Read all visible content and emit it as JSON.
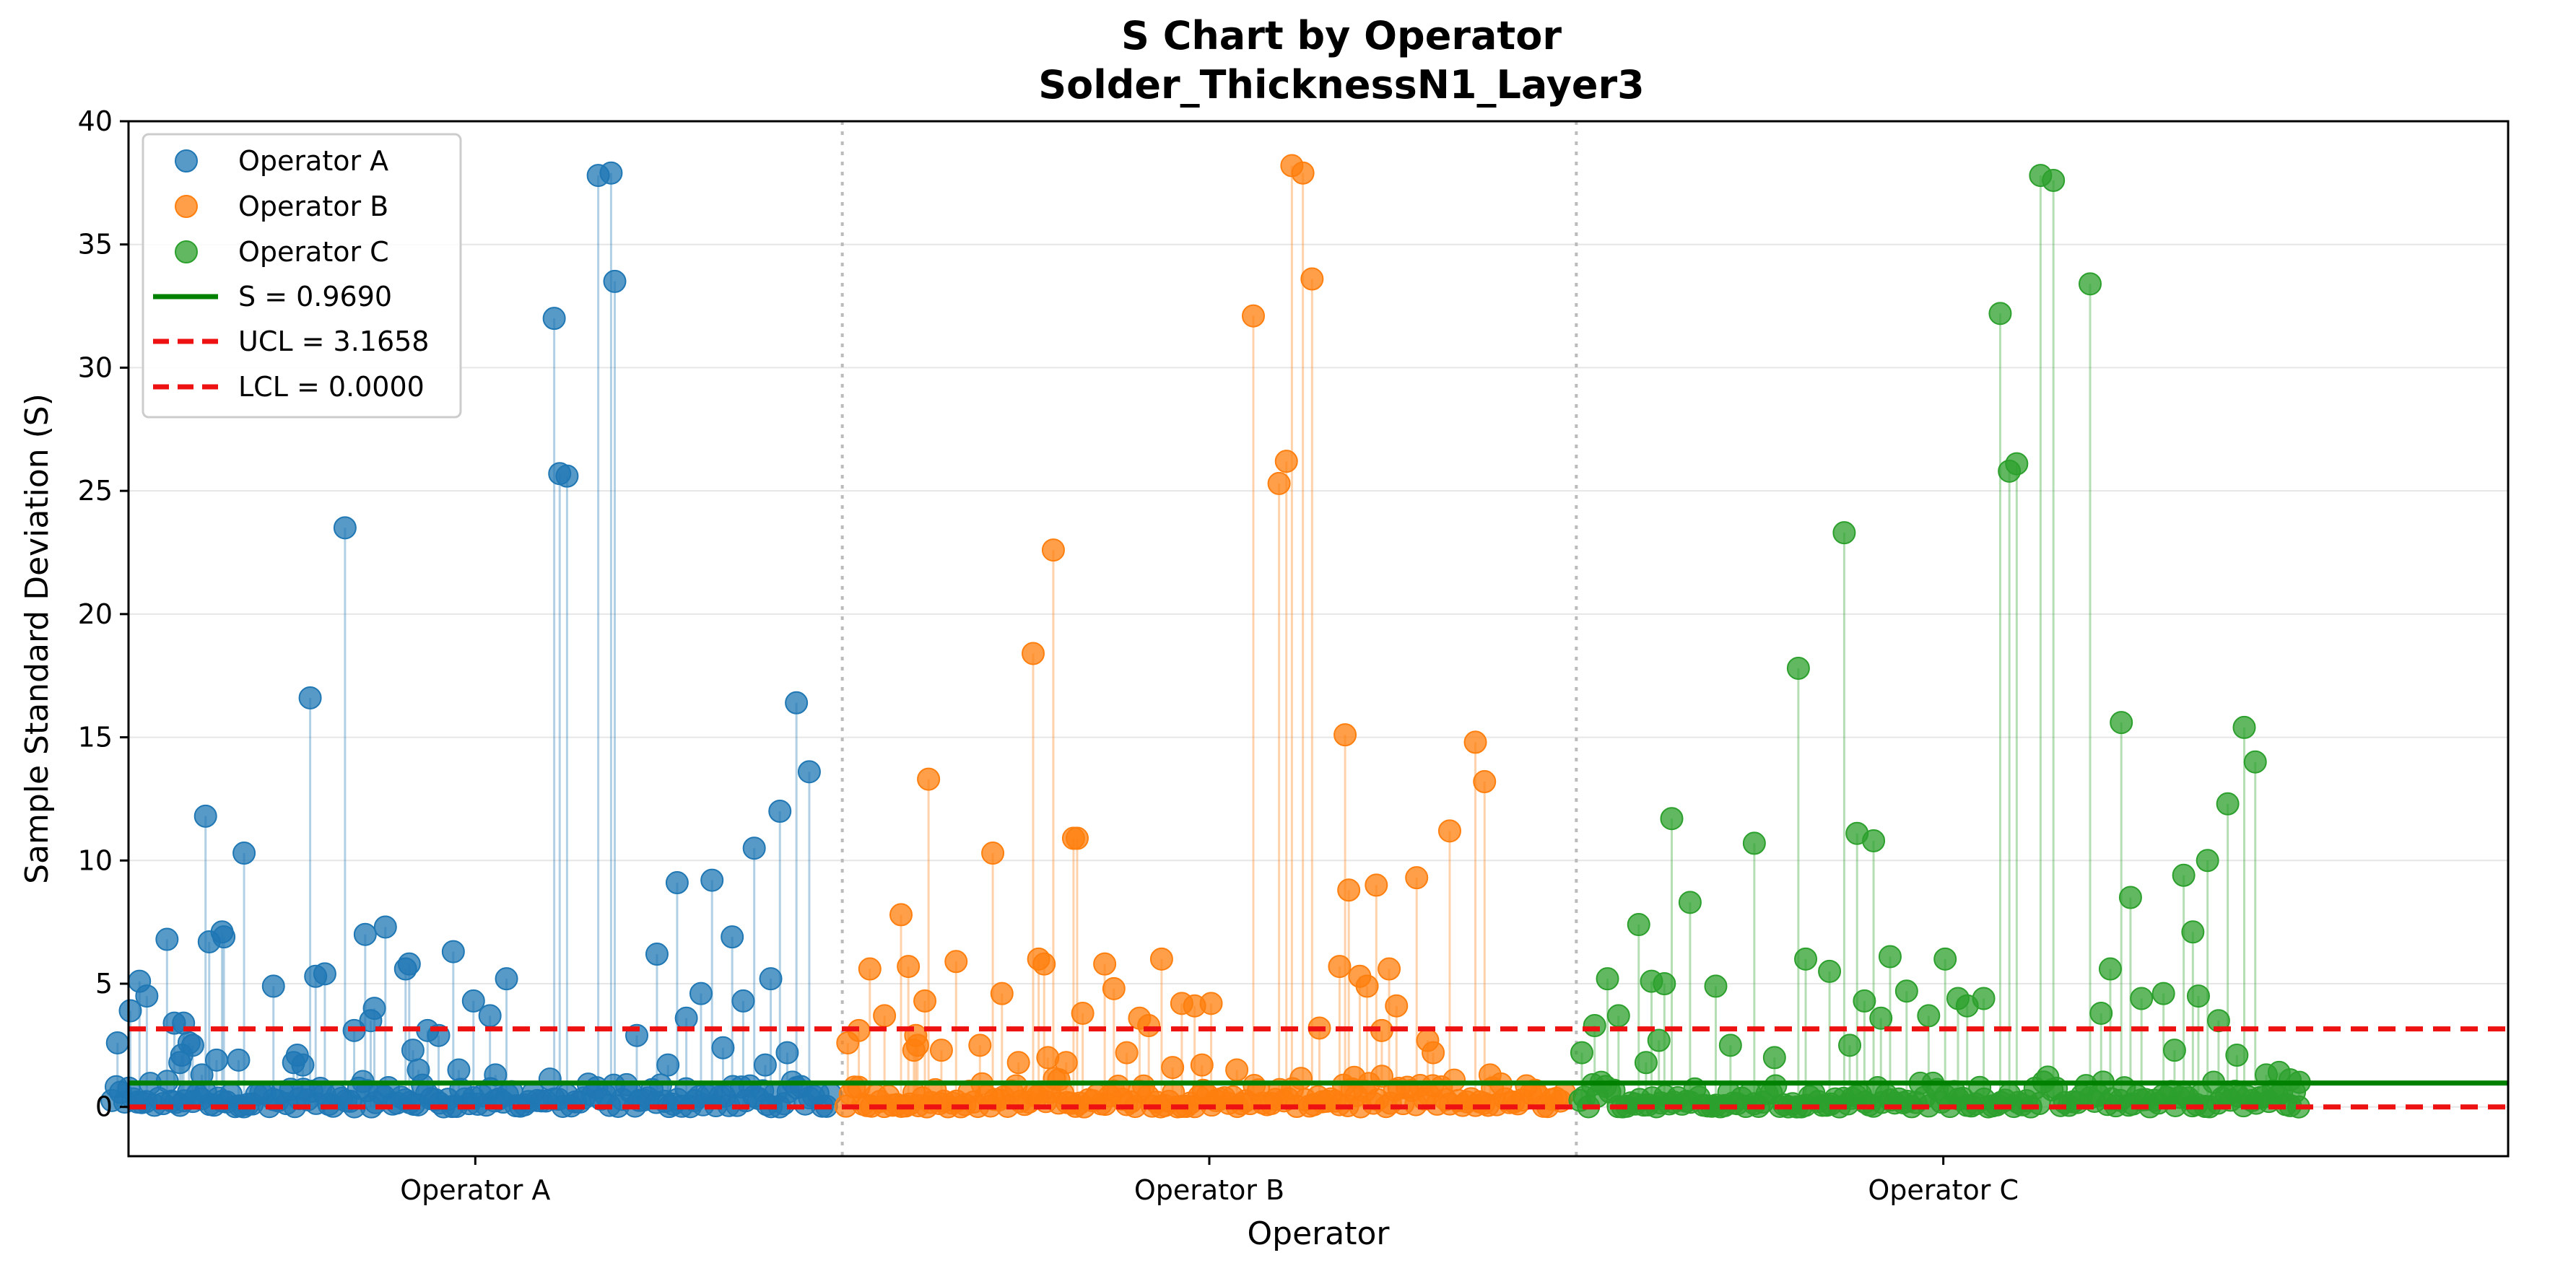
{
  "chart_data": {
    "type": "scatter",
    "title": "S Chart by Operator",
    "subtitle": "Solder_ThicknessN1_Layer3",
    "xlabel": "Operator",
    "ylabel": "Sample Standard Deviation (S)",
    "ylim": [
      -2,
      40
    ],
    "yticks": [
      0,
      5,
      10,
      15,
      20,
      25,
      30,
      35,
      40
    ],
    "categories": [
      "Operator A",
      "Operator B",
      "Operator C"
    ],
    "grid": "horizontal",
    "legend_position": "top-left",
    "colors": {
      "Operator A": "#1f77b4",
      "Operator B": "#ff7f0e",
      "Operator C": "#2ca02c",
      "center_line": "#008000",
      "limit_lines": "#ee1111",
      "separator": "#bbbbbb"
    },
    "center_line": {
      "label": "S = 0.9690",
      "value": 0.969
    },
    "ucl": {
      "label": "UCL = 3.1658",
      "value": 3.1658
    },
    "lcl": {
      "label": "LCL = 0.0000",
      "value": 0.0
    },
    "series": [
      {
        "name": "Operator A",
        "x": [
          0.5,
          1.2,
          1.7,
          2.1,
          3.2,
          3.6,
          3.9,
          4.0,
          4.1,
          4.4,
          4.6,
          5.1,
          5.3,
          5.5,
          5.9,
          6.2,
          6.3,
          7.1,
          7.4,
          9.0,
          10.1,
          10.3,
          10.6,
          11.0,
          11.3,
          11.8,
          12.9,
          13.4,
          14.0,
          14.3,
          14.5,
          15.1,
          16.2,
          16.4,
          16.6,
          16.9,
          17.4,
          18.0,
          18.8,
          19.1,
          19.9,
          20.8,
          21.1,
          21.7,
          24.3,
          24.6,
          25.0,
          26.7,
          27.4,
          27.6,
          28.8,
          29.9,
          30.5,
          31.0,
          31.5,
          32.3,
          32.9,
          33.5,
          34.0,
          34.6,
          35.2,
          35.8,
          36.1,
          36.6,
          37.0,
          37.5,
          38.2
        ],
        "y": [
          2.6,
          3.9,
          5.1,
          4.5,
          6.8,
          3.4,
          1.8,
          2.1,
          3.4,
          2.6,
          2.5,
          1.3,
          11.8,
          6.7,
          1.9,
          7.1,
          6.9,
          1.9,
          10.3,
          4.9,
          1.8,
          2.1,
          1.7,
          16.6,
          5.3,
          5.4,
          23.5,
          3.1,
          7.0,
          3.5,
          4.0,
          7.3,
          5.6,
          5.8,
          2.3,
          1.5,
          3.1,
          2.9,
          6.3,
          1.5,
          4.3,
          3.7,
          1.3,
          5.2,
          32.0,
          25.7,
          25.6,
          37.8,
          37.9,
          33.5,
          2.9,
          6.2,
          1.7,
          9.1,
          3.6,
          4.6,
          9.2,
          2.4,
          6.9,
          4.3,
          10.5,
          1.7,
          5.2,
          12.0,
          2.2,
          16.4,
          13.6
        ]
      },
      {
        "name": "Operator B",
        "x": [
          40.3,
          40.9,
          41.5,
          42.3,
          43.2,
          43.6,
          43.9,
          44.0,
          44.1,
          44.5,
          44.7,
          45.4,
          46.2,
          47.5,
          48.2,
          48.7,
          49.6,
          50.4,
          50.7,
          51.0,
          51.2,
          51.5,
          51.8,
          52.2,
          52.6,
          52.8,
          53.1,
          54.3,
          54.8,
          55.5,
          56.2,
          56.7,
          57.4,
          58.0,
          58.5,
          59.2,
          59.6,
          60.1,
          61.5,
          62.4,
          63.8,
          64.2,
          64.5,
          65.1,
          65.6,
          66.0,
          67.1,
          67.4,
          67.6,
          67.9,
          68.2,
          68.6,
          69.1,
          69.4,
          69.8,
          70.2,
          71.3,
          71.9,
          72.2,
          73.1,
          74.5,
          75.0,
          75.3
        ],
        "y": [
          2.6,
          3.1,
          5.6,
          3.7,
          7.8,
          5.7,
          2.3,
          2.9,
          2.5,
          4.3,
          13.3,
          2.3,
          5.9,
          2.5,
          10.3,
          4.6,
          1.8,
          18.4,
          6.0,
          5.8,
          2.0,
          22.6,
          1.1,
          1.8,
          10.9,
          10.9,
          3.8,
          5.8,
          4.8,
          2.2,
          3.6,
          3.3,
          6.0,
          1.6,
          4.2,
          4.1,
          1.7,
          4.2,
          1.5,
          32.1,
          25.3,
          26.2,
          38.2,
          37.9,
          33.6,
          3.2,
          5.7,
          15.1,
          8.8,
          1.2,
          5.3,
          4.9,
          9.0,
          3.1,
          5.6,
          4.1,
          9.3,
          2.7,
          2.2,
          11.2,
          14.8,
          13.2,
          1.3
        ]
      },
      {
        "name": "Operator C",
        "x": [
          80.3,
          81.0,
          81.7,
          82.3,
          83.4,
          83.8,
          84.1,
          84.5,
          84.8,
          85.2,
          86.2,
          87.6,
          88.4,
          89.7,
          90.8,
          92.1,
          92.5,
          93.8,
          94.6,
          94.9,
          95.3,
          95.7,
          96.2,
          96.6,
          97.1,
          98.0,
          99.2,
          100.1,
          100.8,
          101.3,
          102.2,
          103.1,
          103.6,
          104.0,
          105.3,
          106.0,
          108.0,
          108.6,
          109.1,
          109.7,
          110.2,
          110.8,
          112.0,
          112.6,
          113.1,
          113.6,
          113.9,
          114.4,
          115.0,
          115.5,
          116.0,
          116.4,
          117.0,
          117.6,
          118.3,
          118.9,
          119.4
        ],
        "y": [
          2.2,
          3.3,
          5.2,
          3.7,
          7.4,
          1.8,
          5.1,
          2.7,
          5.0,
          11.7,
          8.3,
          4.9,
          2.5,
          10.7,
          2.0,
          17.8,
          6.0,
          5.5,
          23.3,
          2.5,
          11.1,
          4.3,
          10.8,
          3.6,
          6.1,
          4.7,
          3.7,
          6.0,
          4.4,
          4.1,
          4.4,
          32.2,
          25.8,
          26.1,
          37.8,
          37.6,
          33.4,
          3.8,
          5.6,
          15.6,
          8.5,
          4.4,
          4.6,
          2.3,
          9.4,
          7.1,
          4.5,
          10.0,
          3.5,
          12.3,
          2.1,
          15.4,
          14.0,
          1.3,
          1.4,
          1.1,
          1.0
        ]
      }
    ]
  }
}
